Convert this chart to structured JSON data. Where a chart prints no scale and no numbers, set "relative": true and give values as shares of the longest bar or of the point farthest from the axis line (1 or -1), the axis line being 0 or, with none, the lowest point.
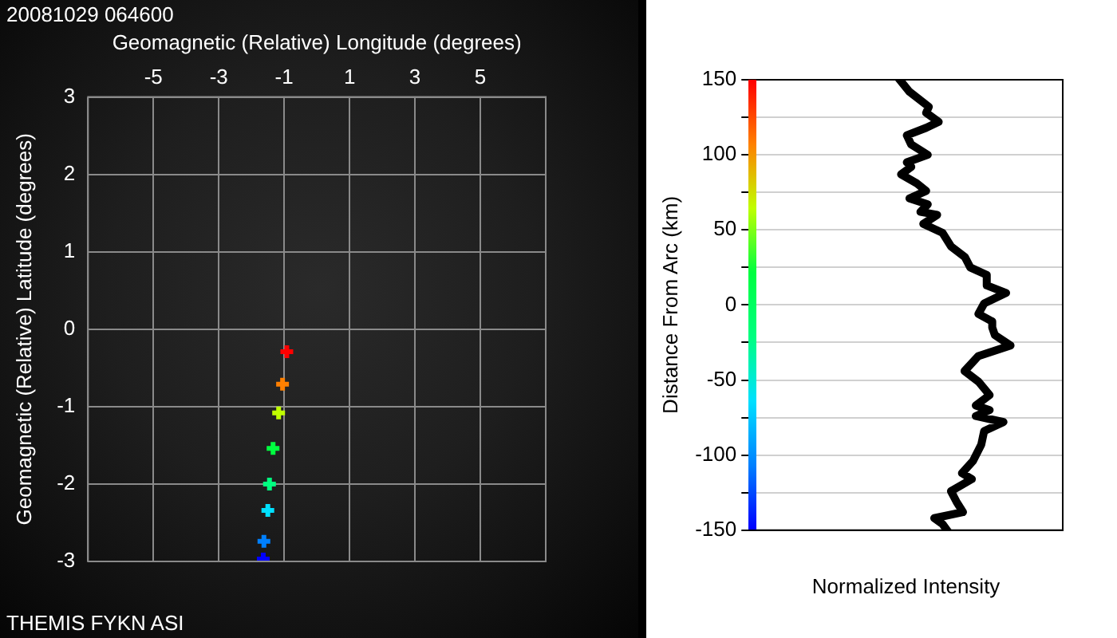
{
  "chart_data": [
    {
      "type": "scatter",
      "title": "20081029 064600",
      "xlabel": "Geomagnetic (Relative) Longitude (degrees)",
      "ylabel": "Geomagnetic (Relative) Latitude (degrees)",
      "annotations": [
        "THEMIS FYKN ASI"
      ],
      "x": [
        -0.92,
        -1.05,
        -1.17,
        -1.34,
        -1.45,
        -1.5,
        -1.62,
        -1.64
      ],
      "values": [
        -0.29,
        -0.71,
        -1.08,
        -1.54,
        -2.0,
        -2.34,
        -2.74,
        -2.97
      ],
      "colors": [
        "#ff0000",
        "#ff8000",
        "#c0ff00",
        "#00ff40",
        "#00ff80",
        "#00e0ff",
        "#0080ff",
        "#0000ff"
      ],
      "marker": "cross",
      "xlim": [
        -7,
        7
      ],
      "xticks": [
        {
          "value": -7,
          "label": null
        },
        -5,
        -3,
        -1,
        1,
        3,
        5,
        {
          "value": 7,
          "label": null
        }
      ],
      "ylim": [
        -3,
        3
      ],
      "yticks": [
        -3,
        -2,
        -1,
        0,
        1,
        2,
        3
      ],
      "grid": true,
      "legend": false
    },
    {
      "type": "line",
      "orientation": "horizontal",
      "relative": true,
      "ylabel": "Distance From Arc (km)",
      "xlabel": "Normalized Intensity",
      "x": [
        151,
        142,
        132,
        128,
        122,
        118,
        113,
        107,
        100,
        95,
        92,
        87,
        81,
        76,
        71,
        67,
        62,
        60,
        54,
        48,
        39,
        32,
        25,
        20,
        13,
        8,
        1,
        -6,
        -11,
        -15,
        -20,
        -27,
        -34,
        -44,
        -51,
        -60,
        -67,
        -70,
        -74,
        -78,
        -84,
        -93,
        -104,
        -112,
        -116,
        -124,
        -131,
        -138,
        -142,
        -146,
        -151
      ],
      "series": [
        {
          "color": "#000000",
          "values": [
            0.571,
            0.613,
            0.687,
            0.677,
            0.725,
            0.677,
            0.603,
            0.619,
            0.683,
            0.603,
            0.62,
            0.581,
            0.641,
            0.677,
            0.613,
            0.683,
            0.655,
            0.719,
            0.666,
            0.74,
            0.772,
            0.825,
            0.846,
            0.909,
            0.909,
            0.983,
            0.899,
            0.877,
            0.93,
            0.93,
            0.94,
            1.0,
            0.877,
            0.824,
            0.877,
            0.92,
            0.867,
            0.92,
            0.867,
            0.973,
            0.899,
            0.888,
            0.856,
            0.814,
            0.852,
            0.772,
            0.793,
            0.818,
            0.708,
            0.74,
            0.761
          ]
        }
      ],
      "ylim": [
        -150,
        150
      ],
      "yticks": [
        -150,
        {
          "value": -125,
          "label": null
        },
        -100,
        {
          "value": -75,
          "label": null
        },
        -50,
        {
          "value": -25,
          "label": null
        },
        0,
        {
          "value": 25,
          "label": null
        },
        50,
        {
          "value": 75,
          "label": null
        },
        100,
        {
          "value": 125,
          "label": null
        },
        150
      ],
      "grid": "y",
      "tick_labels": "y",
      "legend": false,
      "line_style": "solid"
    }
  ]
}
